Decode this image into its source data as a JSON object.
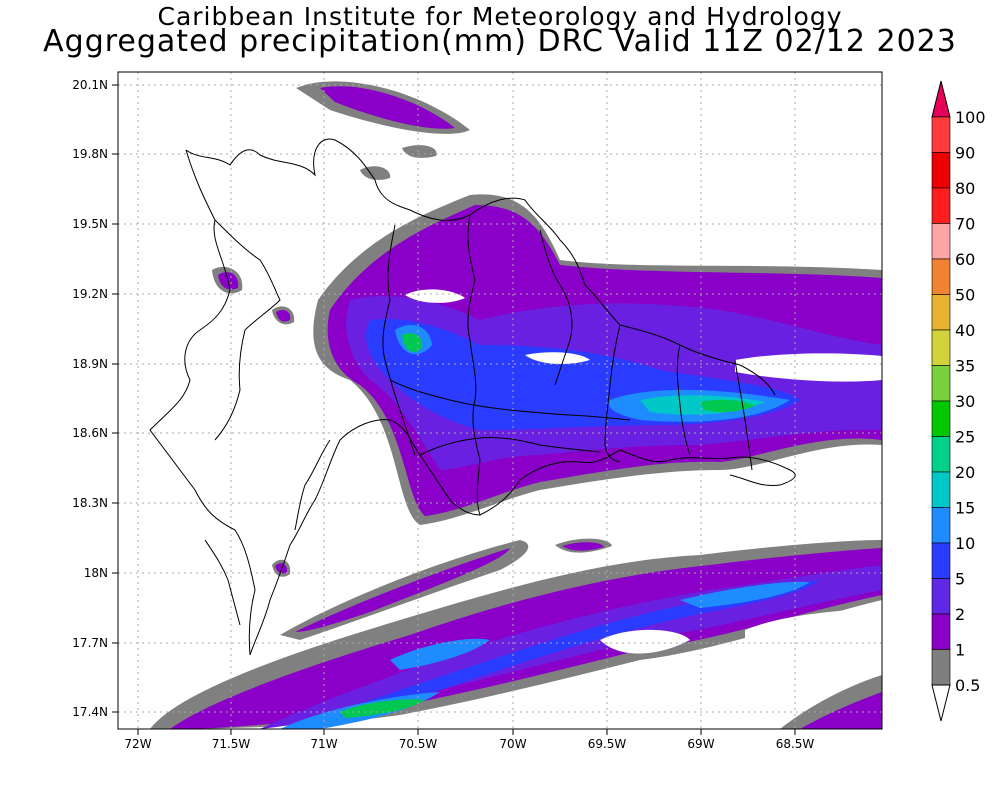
{
  "title": {
    "line1": "Caribbean Institute for Meteorology and Hydrology",
    "line2": "Aggregated precipitation(mm) DRC Valid 11Z 02/12 2023"
  },
  "axes": {
    "lon_ticks": [
      "72W",
      "71.5W",
      "71W",
      "70.5W",
      "70W",
      "69.5W",
      "69W",
      "68.5W"
    ],
    "lat_ticks": [
      "20.1N",
      "19.8N",
      "19.5N",
      "19.2N",
      "18.9N",
      "18.6N",
      "18.3N",
      "18N",
      "17.7N",
      "17.4N"
    ]
  },
  "colorbar": {
    "labels": [
      "0.5",
      "1",
      "2",
      "5",
      "10",
      "15",
      "20",
      "25",
      "30",
      "35",
      "40",
      "50",
      "60",
      "70",
      "80",
      "90",
      "100"
    ],
    "colors": [
      "#ffffff",
      "#7f7f7f",
      "#8a00c8",
      "#5e28e6",
      "#2a3cff",
      "#1e8cff",
      "#00c8c8",
      "#00d28c",
      "#00c800",
      "#78d23c",
      "#d2d23c",
      "#e6b432",
      "#f08232",
      "#ffa5a5",
      "#ff1e1e",
      "#ee0000",
      "#ff3c3c",
      "#e6005a"
    ]
  },
  "map": {
    "colors": {
      "light": "#808080",
      "low": "#8a00c8",
      "mid": "#6a20e0",
      "high": "#2a3cff",
      "heavy": "#1e8cff",
      "intense": "#00c8c8",
      "extreme": "#00c850"
    }
  }
}
